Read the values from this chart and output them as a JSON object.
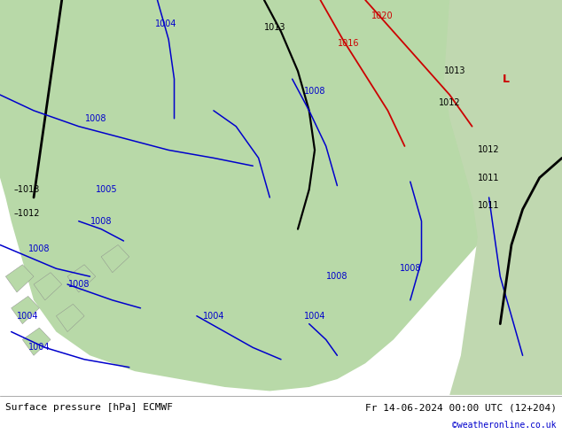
{
  "title_left": "Surface pressure [hPa] ECMWF",
  "title_right": "Fr 14-06-2024 00:00 UTC (12+204)",
  "copyright": "©weatheronline.co.uk",
  "bg_sea_color": "#c8d8e0",
  "land_color": "#b8d9a8",
  "land_color2": "#c0d8b0",
  "fig_width": 6.34,
  "fig_height": 4.9,
  "dpi": 100,
  "contour_blue": "#0000cc",
  "contour_red": "#cc0000",
  "contour_black": "#000000",
  "copyright_color": "#0000cc",
  "text_color": "#000000",
  "title_fontsize": 8,
  "label_fontsize": 7
}
